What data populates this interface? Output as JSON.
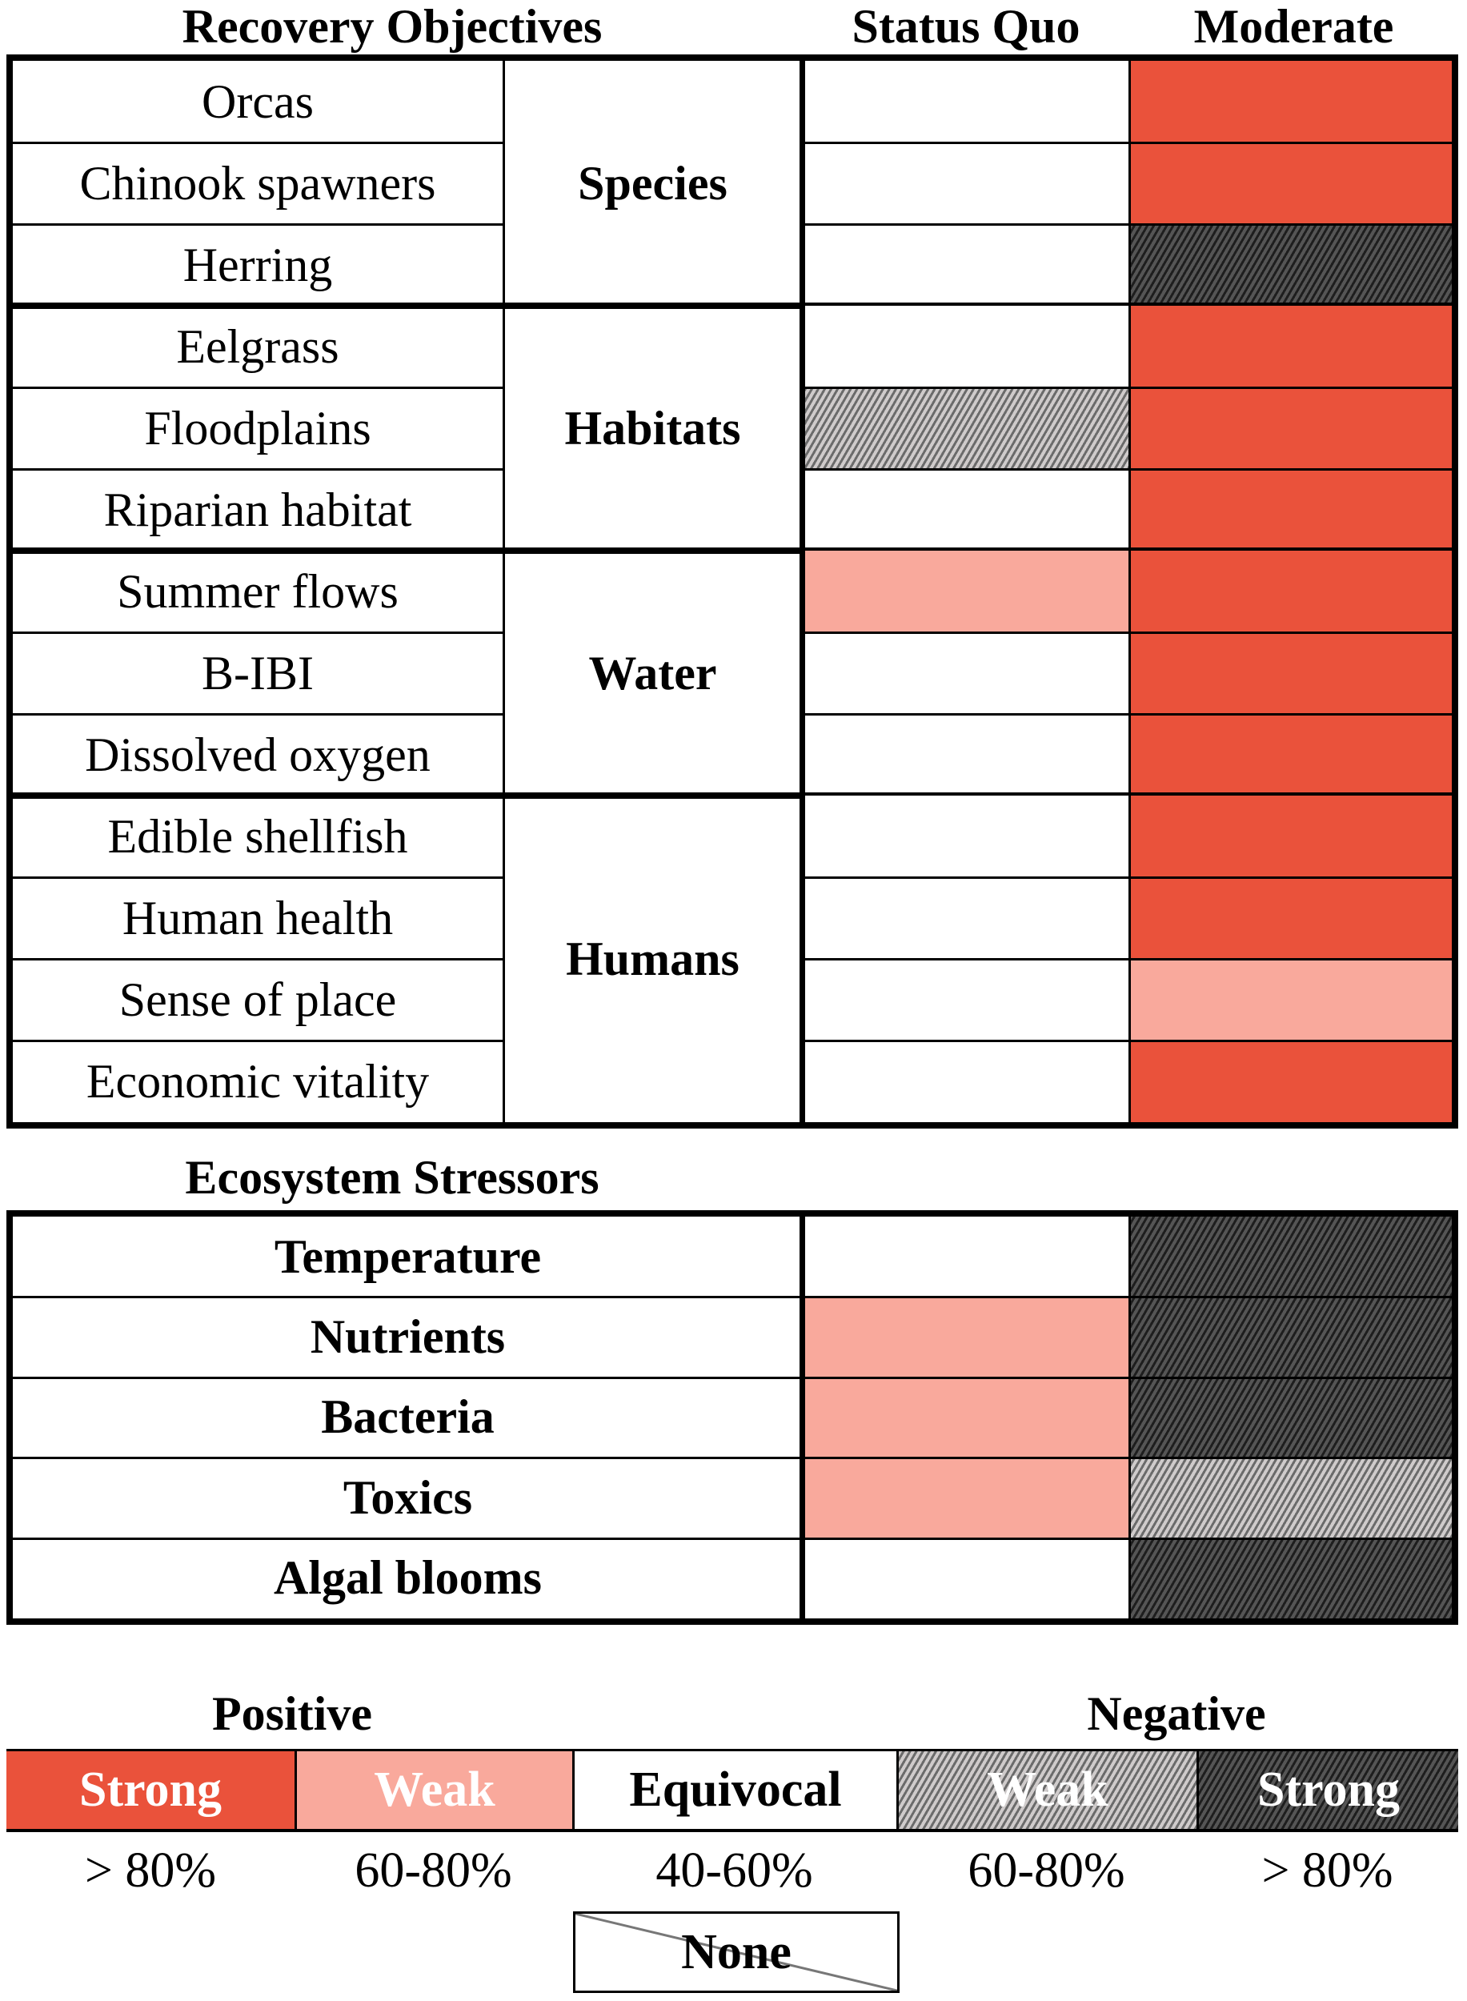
{
  "headers": {
    "recovery_objectives": "Recovery Objectives",
    "status_quo": "Status Quo",
    "moderate": "Moderate",
    "ecosystem_stressors": "Ecosystem Stressors"
  },
  "recovery_groups": [
    {
      "group": "Species",
      "items": [
        {
          "label": "Orcas",
          "status_quo": "equivocal",
          "moderate": "strong_positive"
        },
        {
          "label": "Chinook spawners",
          "status_quo": "equivocal",
          "moderate": "strong_positive"
        },
        {
          "label": "Herring",
          "status_quo": "equivocal",
          "moderate": "strong_negative"
        }
      ]
    },
    {
      "group": "Habitats",
      "items": [
        {
          "label": "Eelgrass",
          "status_quo": "equivocal",
          "moderate": "strong_positive"
        },
        {
          "label": "Floodplains",
          "status_quo": "weak_negative",
          "moderate": "strong_positive"
        },
        {
          "label": "Riparian habitat",
          "status_quo": "equivocal",
          "moderate": "strong_positive"
        }
      ]
    },
    {
      "group": "Water",
      "items": [
        {
          "label": "Summer flows",
          "status_quo": "weak_positive",
          "moderate": "strong_positive"
        },
        {
          "label": "B-IBI",
          "status_quo": "equivocal",
          "moderate": "strong_positive"
        },
        {
          "label": "Dissolved oxygen",
          "status_quo": "equivocal",
          "moderate": "strong_positive"
        }
      ]
    },
    {
      "group": "Humans",
      "items": [
        {
          "label": "Edible shellfish",
          "status_quo": "equivocal",
          "moderate": "strong_positive"
        },
        {
          "label": "Human health",
          "status_quo": "equivocal",
          "moderate": "strong_positive"
        },
        {
          "label": "Sense of place",
          "status_quo": "equivocal",
          "moderate": "weak_positive"
        },
        {
          "label": "Economic vitality",
          "status_quo": "equivocal",
          "moderate": "strong_positive"
        }
      ]
    }
  ],
  "stressors": [
    {
      "label": "Temperature",
      "status_quo": "equivocal",
      "moderate": "strong_negative"
    },
    {
      "label": "Nutrients",
      "status_quo": "weak_positive",
      "moderate": "strong_negative"
    },
    {
      "label": "Bacteria",
      "status_quo": "weak_positive",
      "moderate": "strong_negative"
    },
    {
      "label": "Toxics",
      "status_quo": "weak_positive",
      "moderate": "weak_negative"
    },
    {
      "label": "Algal blooms",
      "status_quo": "equivocal",
      "moderate": "strong_negative"
    }
  ],
  "legend": {
    "positive_label": "Positive",
    "negative_label": "Negative",
    "items": [
      {
        "key": "strong_positive",
        "label": "Strong",
        "range": "> 80%",
        "color": "#ea523b"
      },
      {
        "key": "weak_positive",
        "label": "Weak",
        "range": "60-80%",
        "color": "#f9a99c"
      },
      {
        "key": "equivocal",
        "label": "Equivocal",
        "range": "40-60%",
        "color": "#ffffff"
      },
      {
        "key": "weak_negative",
        "label": "Weak",
        "range": "60-80%",
        "color": "#9a9696"
      },
      {
        "key": "strong_negative",
        "label": "Strong",
        "range": "> 80%",
        "color": "#2b2b2b"
      }
    ],
    "none_label": "None"
  },
  "chart_data": {
    "type": "heatmap",
    "title": "",
    "columns": [
      "Status Quo",
      "Moderate"
    ],
    "rows": [
      "Orcas",
      "Chinook spawners",
      "Herring",
      "Eelgrass",
      "Floodplains",
      "Riparian habitat",
      "Summer flows",
      "B-IBI",
      "Dissolved oxygen",
      "Edible shellfish",
      "Human health",
      "Sense of place",
      "Economic vitality",
      "Temperature",
      "Nutrients",
      "Bacteria",
      "Toxics",
      "Algal blooms"
    ],
    "row_groups": {
      "Species": [
        "Orcas",
        "Chinook spawners",
        "Herring"
      ],
      "Habitats": [
        "Eelgrass",
        "Floodplains",
        "Riparian habitat"
      ],
      "Water": [
        "Summer flows",
        "B-IBI",
        "Dissolved oxygen"
      ],
      "Humans": [
        "Edible shellfish",
        "Human health",
        "Sense of place",
        "Economic vitality"
      ],
      "Ecosystem Stressors": [
        "Temperature",
        "Nutrients",
        "Bacteria",
        "Toxics",
        "Algal blooms"
      ]
    },
    "values": [
      [
        "Equivocal",
        "Strong positive"
      ],
      [
        "Equivocal",
        "Strong positive"
      ],
      [
        "Equivocal",
        "Strong negative"
      ],
      [
        "Equivocal",
        "Strong positive"
      ],
      [
        "Weak negative",
        "Strong positive"
      ],
      [
        "Equivocal",
        "Strong positive"
      ],
      [
        "Weak positive",
        "Strong positive"
      ],
      [
        "Equivocal",
        "Strong positive"
      ],
      [
        "Equivocal",
        "Strong positive"
      ],
      [
        "Equivocal",
        "Strong positive"
      ],
      [
        "Equivocal",
        "Strong positive"
      ],
      [
        "Equivocal",
        "Weak positive"
      ],
      [
        "Equivocal",
        "Strong positive"
      ],
      [
        "Equivocal",
        "Strong negative"
      ],
      [
        "Weak positive",
        "Strong negative"
      ],
      [
        "Weak positive",
        "Strong negative"
      ],
      [
        "Weak positive",
        "Weak negative"
      ],
      [
        "Equivocal",
        "Strong negative"
      ]
    ],
    "legend": [
      "Strong positive (> 80%)",
      "Weak positive (60-80%)",
      "Equivocal (40-60%)",
      "Weak negative (60-80%)",
      "Strong negative (> 80%)",
      "None"
    ]
  }
}
